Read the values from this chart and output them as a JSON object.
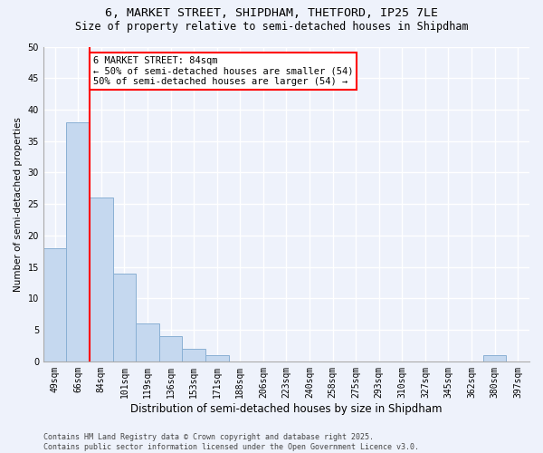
{
  "title_line1": "6, MARKET STREET, SHIPDHAM, THETFORD, IP25 7LE",
  "title_line2": "Size of property relative to semi-detached houses in Shipdham",
  "xlabel": "Distribution of semi-detached houses by size in Shipdham",
  "ylabel": "Number of semi-detached properties",
  "categories": [
    "49sqm",
    "66sqm",
    "84sqm",
    "101sqm",
    "119sqm",
    "136sqm",
    "153sqm",
    "171sqm",
    "188sqm",
    "206sqm",
    "223sqm",
    "240sqm",
    "258sqm",
    "275sqm",
    "293sqm",
    "310sqm",
    "327sqm",
    "345sqm",
    "362sqm",
    "380sqm",
    "397sqm"
  ],
  "values": [
    18,
    38,
    26,
    14,
    6,
    4,
    2,
    1,
    0,
    0,
    0,
    0,
    0,
    0,
    0,
    0,
    0,
    0,
    0,
    1,
    0
  ],
  "bar_color": "#c5d8ef",
  "bar_edge_color": "#8ab0d4",
  "red_line_index": 2,
  "annotation_text": "6 MARKET STREET: 84sqm\n← 50% of semi-detached houses are smaller (54)\n50% of semi-detached houses are larger (54) →",
  "annotation_box_facecolor": "white",
  "annotation_box_edgecolor": "red",
  "footer_text": "Contains HM Land Registry data © Crown copyright and database right 2025.\nContains public sector information licensed under the Open Government Licence v3.0.",
  "ylim": [
    0,
    50
  ],
  "yticks": [
    0,
    5,
    10,
    15,
    20,
    25,
    30,
    35,
    40,
    45,
    50
  ],
  "background_color": "#eef2fb",
  "grid_color": "white",
  "title_fontsize": 9.5,
  "subtitle_fontsize": 8.5,
  "xlabel_fontsize": 8.5,
  "ylabel_fontsize": 7.5,
  "tick_fontsize": 7,
  "annotation_fontsize": 7.5,
  "footer_fontsize": 6
}
